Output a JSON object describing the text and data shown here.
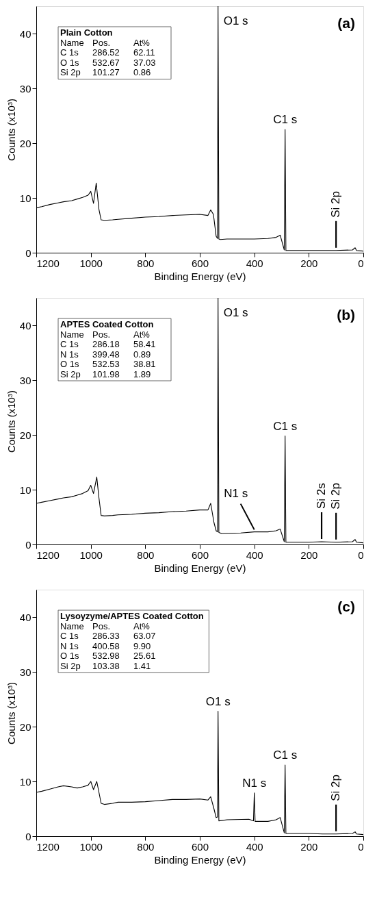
{
  "chart_data": [
    {
      "type": "line",
      "title": "(a)",
      "xlabel": "Binding Energy (eV)",
      "ylabel": "Counts (x10³)",
      "xlim": [
        1200,
        0
      ],
      "ylim": [
        0,
        45
      ],
      "xticks": [
        1200,
        1000,
        800,
        600,
        400,
        200,
        0
      ],
      "yticks": [
        0,
        10,
        20,
        30,
        40
      ],
      "grid": false,
      "x": [
        1200,
        1180,
        1150,
        1120,
        1100,
        1070,
        1050,
        1030,
        1010,
        1000,
        990,
        980,
        970,
        962,
        950,
        920,
        900,
        850,
        800,
        750,
        700,
        650,
        600,
        570,
        560,
        550,
        540,
        535,
        533,
        530,
        525,
        500,
        450,
        400,
        350,
        320,
        305,
        290,
        287,
        284,
        270,
        200,
        150,
        100,
        40,
        30,
        25,
        0
      ],
      "series": [
        {
          "color": "#000000",
          "values": [
            8.2,
            8.4,
            8.8,
            9.1,
            9.3,
            9.5,
            9.8,
            10.1,
            10.5,
            11.2,
            9.0,
            12.7,
            7.9,
            6.0,
            5.9,
            6.0,
            6.1,
            6.3,
            6.5,
            6.6,
            6.8,
            6.9,
            7.0,
            6.8,
            7.8,
            7.0,
            3.0,
            2.6,
            45,
            2.5,
            2.4,
            2.5,
            2.5,
            2.5,
            2.6,
            2.8,
            3.2,
            0.5,
            22.5,
            0.4,
            0.4,
            0.4,
            0.4,
            0.4,
            0.5,
            0.9,
            0.4,
            0.3
          ]
        }
      ],
      "annotations": [
        "Plain Cotton",
        "Name\tPos.\tAt%",
        "C 1s\t286.52\t62.11",
        "O 1s\t532.67\t37.03",
        "Si 2p\t101.27\t0.86",
        {
          "text": "O1 s",
          "x": 533,
          "y": 45
        },
        {
          "text": "C1 s",
          "x": 287,
          "y": 22.5
        },
        {
          "text": "Si 2p",
          "x": 100,
          "y": 0.4
        }
      ]
    },
    {
      "type": "line",
      "title": "(b)",
      "xlabel": "Binding Energy (eV)",
      "ylabel": "Counts (x10³)",
      "xlim": [
        1200,
        0
      ],
      "ylim": [
        0,
        45
      ],
      "xticks": [
        1200,
        1000,
        800,
        600,
        400,
        200,
        0
      ],
      "yticks": [
        0,
        10,
        20,
        30,
        40
      ],
      "grid": false,
      "x": [
        1200,
        1180,
        1150,
        1120,
        1100,
        1070,
        1050,
        1030,
        1010,
        1000,
        990,
        978,
        970,
        962,
        950,
        920,
        900,
        850,
        800,
        750,
        700,
        650,
        600,
        570,
        560,
        548,
        540,
        535,
        533,
        530,
        520,
        450,
        400,
        350,
        320,
        305,
        290,
        287,
        284,
        200,
        153,
        100,
        40,
        30,
        25,
        0
      ],
      "series": [
        {
          "color": "#000000",
          "values": [
            7.5,
            7.7,
            8.0,
            8.3,
            8.5,
            8.7,
            9.0,
            9.3,
            9.8,
            10.8,
            9.3,
            12.3,
            8.5,
            5.3,
            5.2,
            5.3,
            5.4,
            5.5,
            5.7,
            5.8,
            6.0,
            6.1,
            6.3,
            6.3,
            7.5,
            4.0,
            2.5,
            2.3,
            45,
            2.2,
            2.0,
            2.1,
            2.3,
            2.3,
            2.5,
            2.8,
            0.5,
            19.8,
            0.4,
            0.4,
            0.5,
            0.4,
            0.5,
            0.9,
            0.4,
            0.3
          ]
        }
      ],
      "annotations": [
        "APTES Coated Cotton",
        "Name\tPos.\tAt%",
        "C 1s\t286.18\t58.41",
        "N 1s\t399.48\t0.89",
        "O 1s\t532.53\t38.81",
        "Si 2p\t101.98\t1.89",
        {
          "text": "O1 s",
          "x": 533,
          "y": 45
        },
        {
          "text": "C1 s",
          "x": 287,
          "y": 19.8
        },
        {
          "text": "N1 s",
          "x": 400,
          "y": 2.3
        },
        {
          "text": "Si 2s",
          "x": 153,
          "y": 0.5
        },
        {
          "text": "Si 2p",
          "x": 100,
          "y": 0.4
        }
      ]
    },
    {
      "type": "line",
      "title": "(c)",
      "xlabel": "Binding Energy (eV)",
      "ylabel": "Counts (x10³)",
      "xlim": [
        1200,
        0
      ],
      "ylim": [
        0,
        45
      ],
      "xticks": [
        1200,
        1000,
        800,
        600,
        400,
        200,
        0
      ],
      "yticks": [
        0,
        10,
        20,
        30,
        40
      ],
      "grid": false,
      "x": [
        1200,
        1180,
        1150,
        1120,
        1100,
        1070,
        1050,
        1030,
        1010,
        1000,
        990,
        978,
        970,
        962,
        950,
        920,
        900,
        850,
        800,
        750,
        700,
        650,
        600,
        570,
        560,
        548,
        540,
        535,
        533,
        530,
        500,
        420,
        403,
        400,
        397,
        350,
        320,
        305,
        290,
        287,
        284,
        200,
        150,
        100,
        40,
        30,
        25,
        0
      ],
      "series": [
        {
          "color": "#000000",
          "values": [
            8.0,
            8.2,
            8.6,
            9.0,
            9.2,
            9.0,
            8.8,
            9.0,
            9.3,
            10.0,
            8.5,
            10.0,
            8.0,
            6.0,
            5.8,
            6.0,
            6.2,
            6.2,
            6.3,
            6.5,
            6.7,
            6.7,
            6.8,
            6.6,
            7.2,
            5.0,
            3.4,
            3.5,
            22.8,
            2.8,
            3.0,
            3.1,
            2.8,
            7.9,
            2.7,
            2.7,
            3.0,
            3.4,
            0.6,
            13.0,
            0.5,
            0.5,
            0.4,
            0.4,
            0.5,
            0.8,
            0.4,
            0.3
          ]
        }
      ],
      "annotations": [
        "Lysoyzyme/APTES Coated Cotton",
        "Name\tPos.\tAt%",
        "C 1s\t286.33\t63.07",
        "N 1s\t400.58\t9.90",
        "O 1s\t532.98\t25.61",
        "Si 2p\t103.38\t1.41",
        {
          "text": "O1 s",
          "x": 533,
          "y": 22.8
        },
        {
          "text": "C1 s",
          "x": 287,
          "y": 13.0
        },
        {
          "text": "N1 s",
          "x": 400,
          "y": 7.9
        },
        {
          "text": "Si 2p",
          "x": 100,
          "y": 0.4
        }
      ]
    }
  ]
}
